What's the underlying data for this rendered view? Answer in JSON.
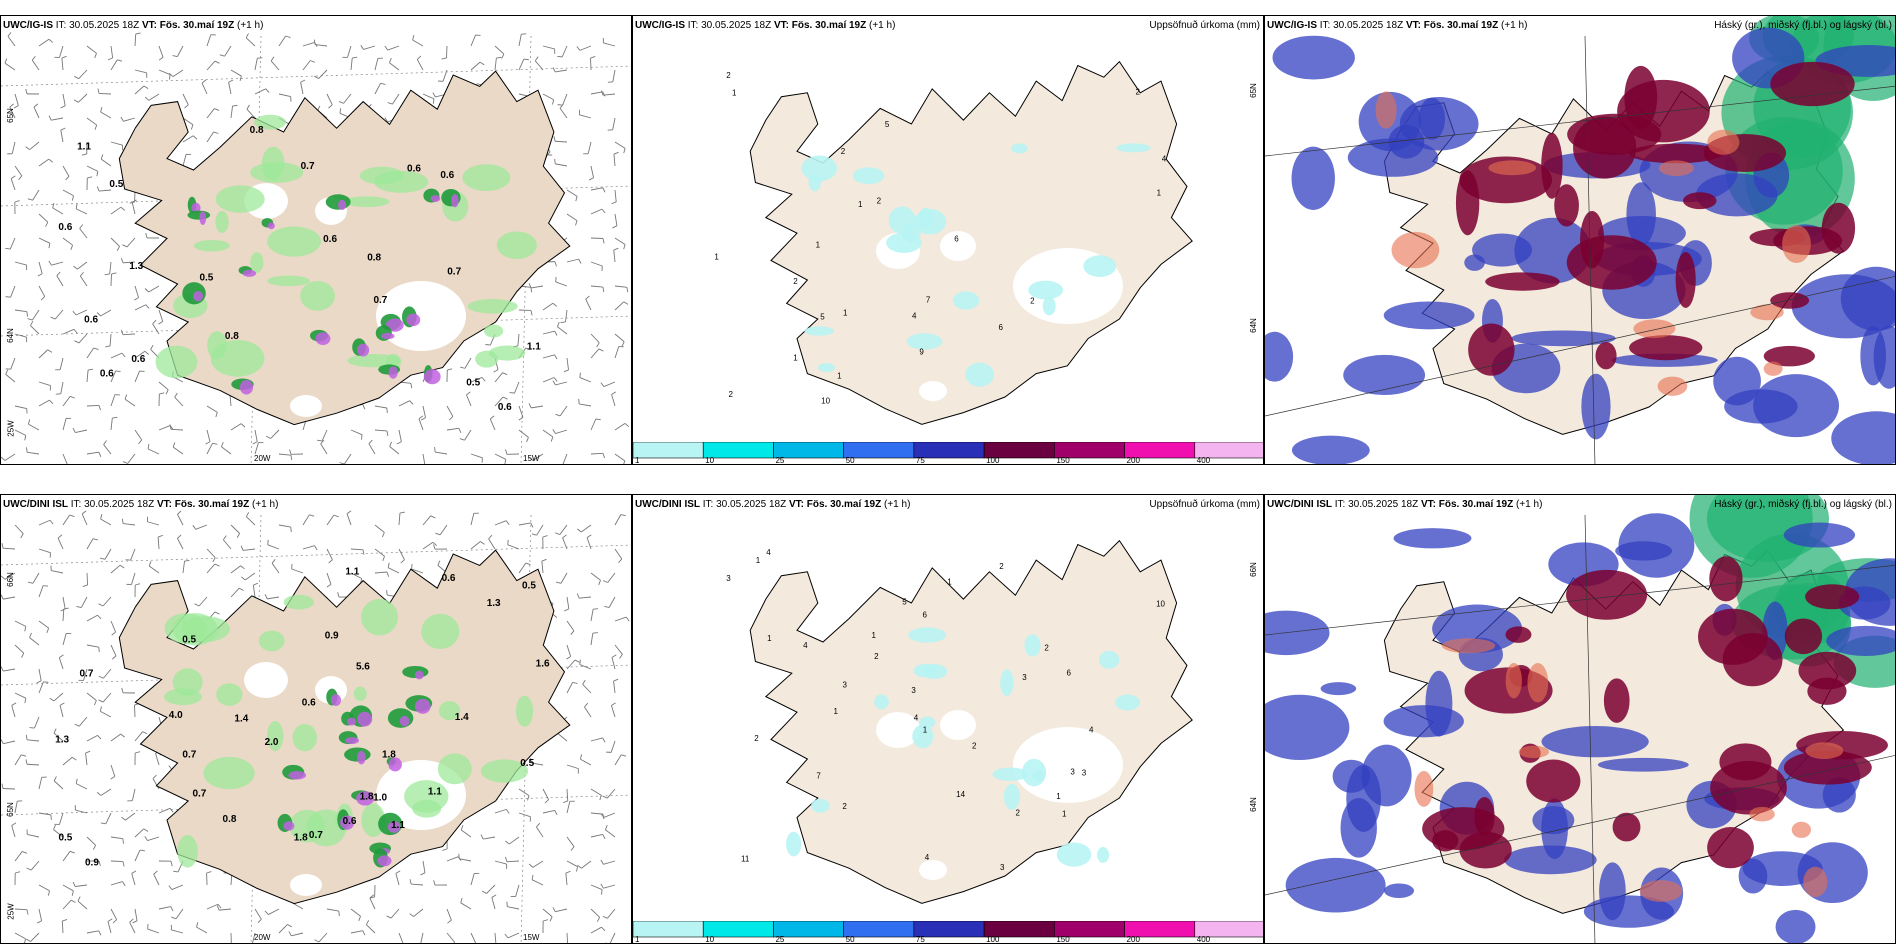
{
  "rows": [
    {
      "model": "UWC/IG-IS",
      "it_label": "IT:",
      "it_value": "30.05.2025 18Z",
      "vt_label": "VT:",
      "vt_value": "Fös. 30.maí 19Z",
      "lead": "(+1 h)",
      "precip_values": [
        "0.6",
        "1.3",
        "0.7",
        "1.1",
        "1.1",
        "0.5",
        "0.6",
        "0.5",
        "0.6",
        "0.7",
        "0.6",
        "0.5",
        "0.8",
        "0.8",
        "0.8",
        "0.6",
        "0.7",
        "0.6",
        "0.6",
        "0.6"
      ],
      "accum_values": [
        "1",
        "2",
        "1",
        "2",
        "4",
        "6",
        "5",
        "1",
        "2",
        "2",
        "5",
        "6",
        "10",
        "2",
        "7",
        "1",
        "4",
        "1",
        "2",
        "2",
        "1",
        "9",
        "1",
        "1"
      ],
      "grid_labels": {
        "lat_top": "65N",
        "lat_mid": "64N",
        "lon_left": "25W",
        "lon_mid": "20W",
        "lon_right": "15W",
        "lat_right": "65N",
        "lat_right2": "64N"
      }
    },
    {
      "model": "UWC/DINI ISL",
      "it_label": "IT:",
      "it_value": "30.05.2025 18Z",
      "vt_label": "VT:",
      "vt_value": "Fös. 30.maí 19Z",
      "lead": "(+1 h)",
      "precip_values": [
        "1.1",
        "0.6",
        "1.1",
        "1.8",
        "1.4",
        "1.8",
        "0.7",
        "0.5",
        "1.1",
        "1.0",
        "2.0",
        "4.0",
        "0.7",
        "0.5",
        "0.9",
        "1.3",
        "1.4",
        "1.6",
        "5.6",
        "0.7",
        "0.6",
        "0.5",
        "0.9",
        "0.8",
        "0.7",
        "0.6",
        "0.5",
        "1.8",
        "1.3"
      ],
      "accum_values": [
        "1",
        "2",
        "2",
        "3",
        "2",
        "3",
        "1",
        "3",
        "1",
        "3",
        "11",
        "4",
        "4",
        "1",
        "5",
        "3",
        "4",
        "3",
        "10",
        "6",
        "7",
        "3",
        "4",
        "1",
        "2",
        "1",
        "4",
        "2",
        "6",
        "14",
        "1",
        "1",
        "2",
        "2"
      ],
      "grid_labels": {
        "lat_top": "66N",
        "lat_mid": "65N",
        "lon_left": "25W",
        "lon_mid": "20W",
        "lon_right": "15W",
        "lat_right": "66N",
        "lat_right2": "64N"
      }
    }
  ],
  "middle_title": "Uppsöfnuð úrkoma (mm)",
  "right_title": "Háský (gr.), miðský (fj.bl.) og lágský (bl.)",
  "colorbar": {
    "ticks": [
      "1",
      "10",
      "25",
      "50",
      "75",
      "100",
      "150",
      "200",
      "400"
    ],
    "colors": [
      "#b8f4f4",
      "#00e8e8",
      "#00b8e8",
      "#2f6ff0",
      "#2a2fb8",
      "#6a0040",
      "#a0006a",
      "#f010b0",
      "#f4b4f0"
    ]
  },
  "colors": {
    "land": "#f3e9dc",
    "land_left": "#e9d9c6",
    "green": "#1f9a3a",
    "green_light": "#9ee89a",
    "magenta": "#c060e0",
    "cloud_high": "#7a0030",
    "cloud_mid": "#3340c0",
    "cloud_low": "#20b070",
    "cloud_orange": "#e87050"
  }
}
